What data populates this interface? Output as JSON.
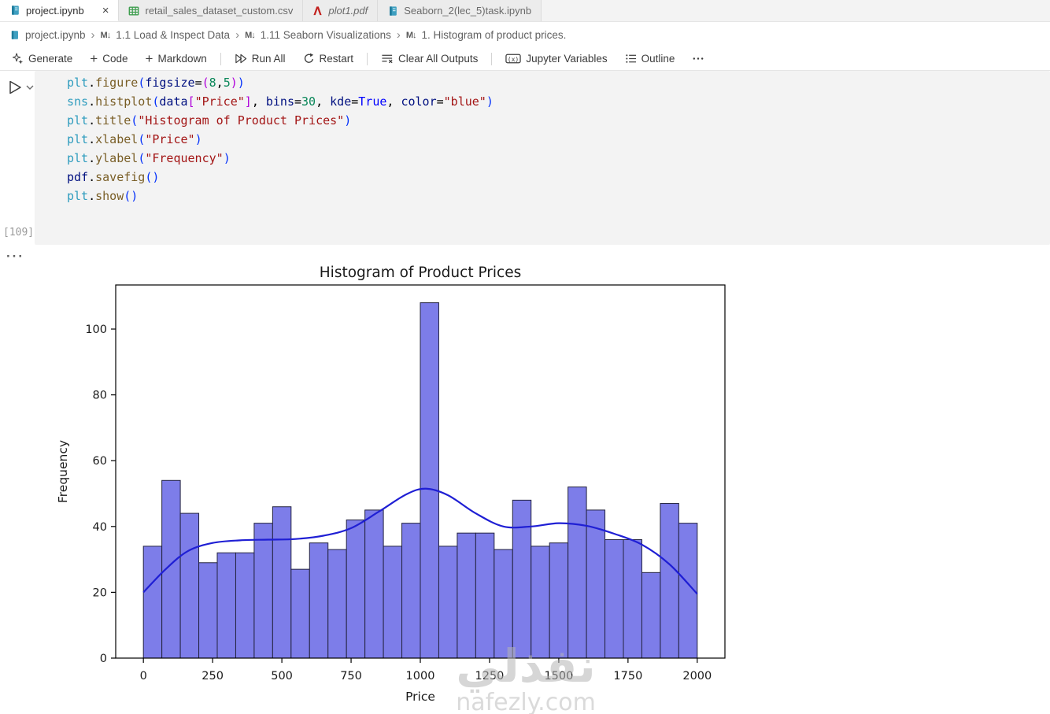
{
  "icons": {
    "close": "×",
    "breadcrumb_sep": "›",
    "markdown_cell": "M↓",
    "more_dots": "···"
  },
  "tabs": [
    {
      "label": "project.ipynb",
      "icon": "notebook-icon",
      "active": true
    },
    {
      "label": "retail_sales_dataset_custom.csv",
      "icon": "table-icon",
      "active": false
    },
    {
      "label": "plot1.pdf",
      "icon": "pdf-icon",
      "active": false,
      "preview": true
    },
    {
      "label": "Seaborn_2(lec_5)task.ipynb",
      "icon": "notebook-icon",
      "active": false
    }
  ],
  "breadcrumbs": {
    "items": [
      "project.ipynb",
      "1.1 Load & Inspect Data",
      "1.11 Seaborn Visualizations",
      "1. Histogram of product prices."
    ]
  },
  "toolbar": {
    "generate": "Generate",
    "code": "Code",
    "markdown": "Markdown",
    "run_all": "Run All",
    "restart": "Restart",
    "clear_all_outputs": "Clear All Outputs",
    "jupyter_variables": "Jupyter Variables",
    "outline": "Outline"
  },
  "cell": {
    "execution_count": "[109]",
    "code_lines": [
      [
        [
          "plt",
          "m"
        ],
        [
          ".",
          "p"
        ],
        [
          "figure",
          "f"
        ],
        [
          "(",
          "b1"
        ],
        [
          "figsize",
          "v"
        ],
        [
          "=",
          "p"
        ],
        [
          "(",
          "b2"
        ],
        [
          "8",
          "n"
        ],
        [
          ",",
          "p"
        ],
        [
          "5",
          "n"
        ],
        [
          ")",
          "b2"
        ],
        [
          ")",
          "b1"
        ]
      ],
      [
        [
          "sns",
          "m"
        ],
        [
          ".",
          "p"
        ],
        [
          "histplot",
          "f"
        ],
        [
          "(",
          "b1"
        ],
        [
          "data",
          "v"
        ],
        [
          "[",
          "b2"
        ],
        [
          "\"Price\"",
          "s"
        ],
        [
          "]",
          "b2"
        ],
        [
          ",",
          "p"
        ],
        [
          " bins",
          "v"
        ],
        [
          "=",
          "p"
        ],
        [
          "30",
          "n"
        ],
        [
          ",",
          "p"
        ],
        [
          " kde",
          "v"
        ],
        [
          "=",
          "p"
        ],
        [
          "True",
          "k"
        ],
        [
          ",",
          "p"
        ],
        [
          " color",
          "v"
        ],
        [
          "=",
          "p"
        ],
        [
          "\"blue\"",
          "s"
        ],
        [
          ")",
          "b1"
        ]
      ],
      [
        [
          "plt",
          "m"
        ],
        [
          ".",
          "p"
        ],
        [
          "title",
          "f"
        ],
        [
          "(",
          "b1"
        ],
        [
          "\"Histogram of Product Prices\"",
          "s"
        ],
        [
          ")",
          "b1"
        ]
      ],
      [
        [
          "plt",
          "m"
        ],
        [
          ".",
          "p"
        ],
        [
          "xlabel",
          "f"
        ],
        [
          "(",
          "b1"
        ],
        [
          "\"Price\"",
          "s"
        ],
        [
          ")",
          "b1"
        ]
      ],
      [
        [
          "plt",
          "m"
        ],
        [
          ".",
          "p"
        ],
        [
          "ylabel",
          "f"
        ],
        [
          "(",
          "b1"
        ],
        [
          "\"Frequency\"",
          "s"
        ],
        [
          ")",
          "b1"
        ]
      ],
      [
        [
          "pdf",
          "v"
        ],
        [
          ".",
          "p"
        ],
        [
          "savefig",
          "f"
        ],
        [
          "(",
          "b1"
        ],
        [
          ")",
          "b1"
        ]
      ],
      [
        [
          "plt",
          "m"
        ],
        [
          ".",
          "p"
        ],
        [
          "show",
          "f"
        ],
        [
          "(",
          "b1"
        ],
        [
          ")",
          "b1"
        ]
      ]
    ]
  },
  "watermark": {
    "arabic": "نفذلي",
    "latin": "nafezly.com"
  },
  "chart_data": {
    "type": "bar",
    "subtype": "histogram-with-kde",
    "title": "Histogram of Product Prices",
    "xlabel": "Price",
    "ylabel": "Frequency",
    "bins": 30,
    "bin_start": 0,
    "bin_width": 66.667,
    "values": [
      34,
      54,
      44,
      29,
      32,
      32,
      41,
      46,
      27,
      35,
      33,
      42,
      45,
      34,
      41,
      108,
      34,
      38,
      38,
      33,
      48,
      34,
      35,
      52,
      45,
      36,
      36,
      26,
      47,
      41
    ],
    "x_ticks": [
      0,
      250,
      500,
      750,
      1000,
      1250,
      1500,
      1750,
      2000
    ],
    "y_ticks": [
      0,
      20,
      40,
      60,
      80,
      100
    ],
    "xlim": [
      -100,
      2100
    ],
    "ylim": [
      0,
      113.4
    ],
    "grid": false,
    "legend": "none",
    "bar_fill": "#7d7de9",
    "bar_edge": "#23233f",
    "kde_color": "#1f1fd4",
    "kde_points": [
      [
        0,
        20
      ],
      [
        80,
        27
      ],
      [
        160,
        32.5
      ],
      [
        250,
        35
      ],
      [
        350,
        35.8
      ],
      [
        450,
        36
      ],
      [
        550,
        36.2
      ],
      [
        650,
        37.2
      ],
      [
        750,
        39.5
      ],
      [
        850,
        44.5
      ],
      [
        950,
        49.8
      ],
      [
        1020,
        51.5
      ],
      [
        1100,
        49.5
      ],
      [
        1200,
        44
      ],
      [
        1300,
        40
      ],
      [
        1400,
        40
      ],
      [
        1500,
        41
      ],
      [
        1600,
        40.2
      ],
      [
        1700,
        37.8
      ],
      [
        1800,
        34.5
      ],
      [
        1900,
        28.5
      ],
      [
        2000,
        19.5
      ]
    ]
  }
}
